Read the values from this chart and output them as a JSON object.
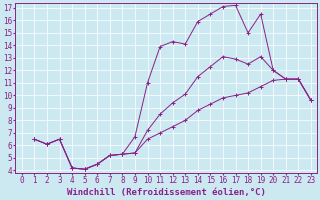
{
  "xlabel": "Windchill (Refroidissement éolien,°C)",
  "bg_color": "#cce8f0",
  "line_color": "#882288",
  "xlim": [
    -0.5,
    23.5
  ],
  "ylim": [
    3.8,
    17.4
  ],
  "xticks": [
    0,
    1,
    2,
    3,
    4,
    5,
    6,
    7,
    8,
    9,
    10,
    11,
    12,
    13,
    14,
    15,
    16,
    17,
    18,
    19,
    20,
    21,
    22,
    23
  ],
  "yticks": [
    4,
    5,
    6,
    7,
    8,
    9,
    10,
    11,
    12,
    13,
    14,
    15,
    16,
    17
  ],
  "series": [
    {
      "x": [
        1,
        2,
        3,
        4,
        5,
        6,
        7,
        8,
        9,
        10,
        11,
        12,
        13,
        14,
        15,
        16,
        17,
        18,
        19,
        20,
        21,
        22,
        23
      ],
      "y": [
        6.5,
        6.1,
        6.5,
        4.2,
        4.1,
        4.5,
        5.2,
        5.3,
        6.7,
        11.0,
        13.9,
        14.3,
        14.1,
        15.9,
        16.5,
        17.1,
        17.2,
        15.0,
        16.5,
        12.0,
        11.3,
        11.3,
        9.6
      ]
    },
    {
      "x": [
        1,
        2,
        3,
        4,
        5,
        6,
        7,
        8,
        9,
        10,
        11,
        12,
        13,
        14,
        15,
        16,
        17,
        18,
        19,
        20,
        21,
        22,
        23
      ],
      "y": [
        6.5,
        6.1,
        6.5,
        4.2,
        4.1,
        4.5,
        5.2,
        5.3,
        5.4,
        7.2,
        8.5,
        9.4,
        10.1,
        11.5,
        12.3,
        13.1,
        12.9,
        12.5,
        13.1,
        12.0,
        11.3,
        11.3,
        9.6
      ]
    },
    {
      "x": [
        1,
        2,
        3,
        4,
        5,
        6,
        7,
        8,
        9,
        10,
        11,
        12,
        13,
        14,
        15,
        16,
        17,
        18,
        19,
        20,
        21,
        22,
        23
      ],
      "y": [
        6.5,
        6.1,
        6.5,
        4.2,
        4.1,
        4.5,
        5.2,
        5.3,
        5.4,
        6.5,
        7.0,
        7.5,
        8.0,
        8.8,
        9.3,
        9.8,
        10.0,
        10.2,
        10.7,
        11.2,
        11.3,
        11.3,
        9.6
      ]
    }
  ],
  "xlabel_fontsize": 6.5,
  "tick_fontsize": 5.5,
  "linewidth": 0.7,
  "markersize": 2.5
}
